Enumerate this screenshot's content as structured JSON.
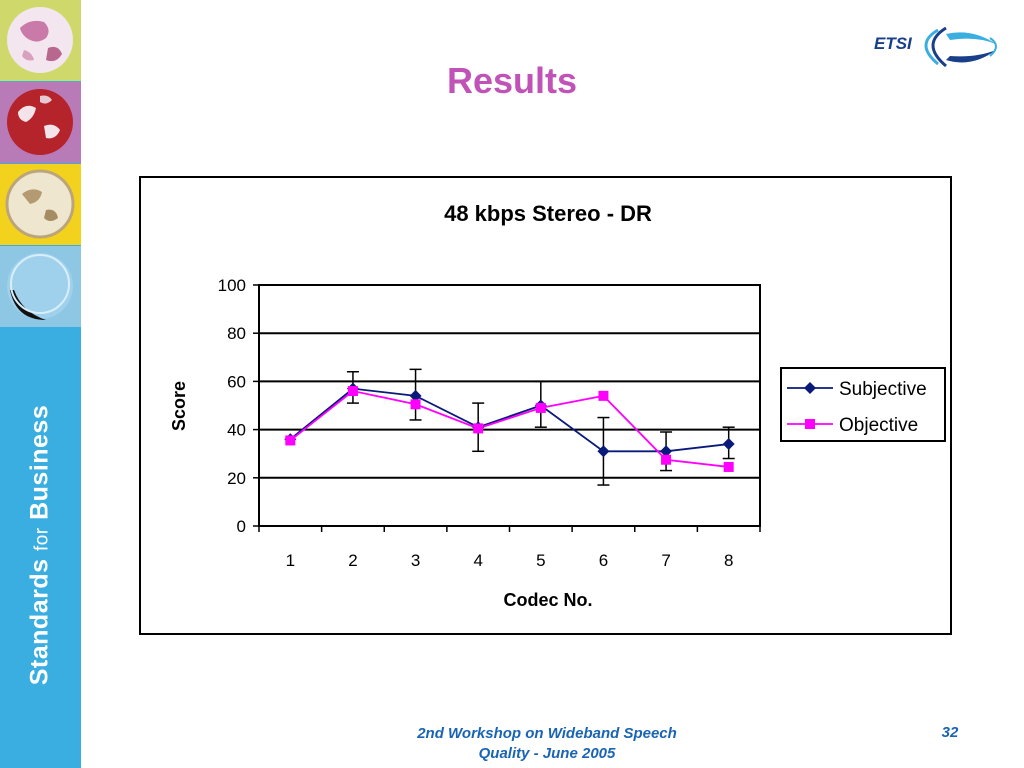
{
  "slide": {
    "title": "Results",
    "sidebar_tagline": {
      "part1": "Standards ",
      "part2": "for",
      "part3": " Business"
    },
    "logo_text": "ETSI",
    "footer": {
      "line1": "2nd Workshop on Wideband Speech",
      "line2": "Quality - June 2005"
    },
    "page_number": "32"
  },
  "colors": {
    "title": "#c152b7",
    "subjective": "#0a1a7a",
    "objective": "#ff00ff",
    "sidebar": "#3aaee0",
    "footer": "#1a64b4"
  },
  "chart_data": {
    "type": "line",
    "title": "48 kbps Stereo - DR",
    "xlabel": "Codec No.",
    "ylabel": "Score",
    "ylim": [
      0,
      100
    ],
    "yticks": [
      0,
      20,
      40,
      60,
      80,
      100
    ],
    "categories": [
      "1",
      "2",
      "3",
      "4",
      "5",
      "6",
      "7",
      "8"
    ],
    "grid": true,
    "legend_position": "right",
    "series": [
      {
        "name": "Subjective",
        "marker": "diamond",
        "values": [
          36,
          57,
          54,
          41,
          50,
          31,
          31,
          34
        ],
        "error_low": [
          36,
          51,
          44,
          31,
          41,
          17,
          23,
          28
        ],
        "error_high": [
          36,
          64,
          65,
          51,
          60,
          45,
          39,
          41
        ]
      },
      {
        "name": "Objective",
        "marker": "square",
        "values": [
          35.5,
          56,
          50.5,
          40.5,
          49,
          54,
          27.5,
          24.5
        ]
      }
    ]
  }
}
